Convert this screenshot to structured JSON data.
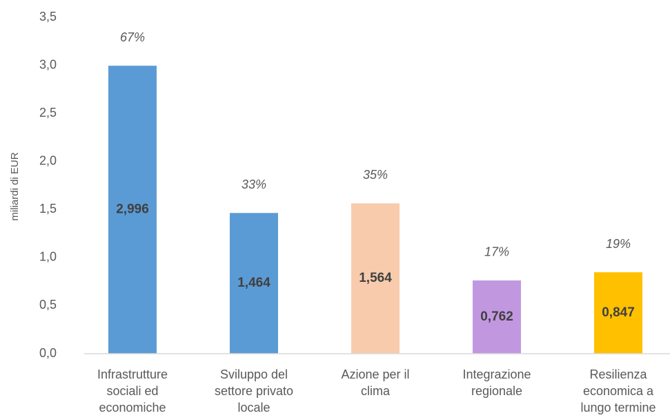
{
  "chart_data": {
    "type": "bar",
    "y_axis_label": "miliardi di EUR",
    "categories": [
      "Infrastrutture sociali ed economiche",
      "Sviluppo del settore privato locale",
      "Azione per il clima",
      "Integrazione regionale",
      "Resilienza economica a lungo termine"
    ],
    "values": [
      2.996,
      1.464,
      1.564,
      0.762,
      0.847
    ],
    "value_labels": [
      "2,996",
      "1,464",
      "1,564",
      "0,762",
      "0,847"
    ],
    "annotations": [
      "67%",
      "33%",
      "35%",
      "17%",
      "19%"
    ],
    "colors": [
      "#5b9bd5",
      "#5b9bd5",
      "#f8cbad",
      "#c198e0",
      "#ffc000"
    ],
    "ylim": [
      0,
      3.5
    ],
    "yticks": [
      {
        "value": 0,
        "label": "0,0"
      },
      {
        "value": 0.5,
        "label": "0,5"
      },
      {
        "value": 1,
        "label": "1,0"
      },
      {
        "value": 1.5,
        "label": "1,5"
      },
      {
        "value": 2,
        "label": "2,0"
      },
      {
        "value": 2.5,
        "label": "2,5"
      },
      {
        "value": 3,
        "label": "3,0"
      },
      {
        "value": 3.5,
        "label": "3,5"
      }
    ],
    "grid": false
  }
}
